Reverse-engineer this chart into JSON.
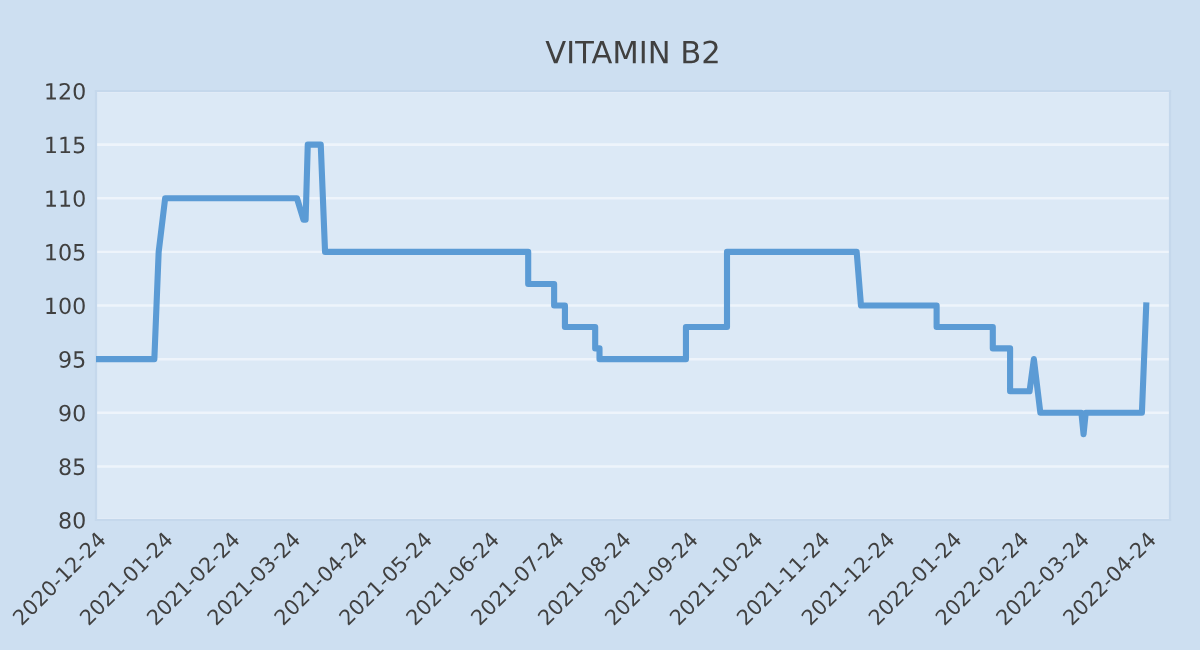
{
  "chart_data": {
    "type": "line",
    "title": "VITAMIN B2",
    "x": [
      "2020-12-24",
      "2021-01-20",
      "2021-01-22",
      "2021-01-25",
      "2021-03-27",
      "2021-03-30",
      "2021-03-31",
      "2021-04-01",
      "2021-04-07",
      "2021-04-09",
      "2021-07-12",
      "2021-07-12",
      "2021-07-24",
      "2021-07-24",
      "2021-07-29",
      "2021-07-29",
      "2021-08-12",
      "2021-08-12",
      "2021-08-14",
      "2021-08-14",
      "2021-09-23",
      "2021-09-23",
      "2021-10-12",
      "2021-10-12",
      "2021-12-11",
      "2021-12-13",
      "2022-01-17",
      "2022-01-17",
      "2022-02-12",
      "2022-02-12",
      "2022-02-20",
      "2022-02-20",
      "2022-03-01",
      "2022-03-03",
      "2022-03-06",
      "2022-03-25",
      "2022-03-26",
      "2022-03-27",
      "2022-04-22",
      "2022-04-24"
    ],
    "series": [
      {
        "color": "#5b9bd5",
        "values": [
          95,
          95,
          105,
          110,
          110,
          108,
          108,
          115,
          115,
          105,
          105,
          102,
          102,
          100,
          100,
          98,
          98,
          96,
          96,
          95,
          95,
          98,
          98,
          105,
          105,
          100,
          100,
          98,
          98,
          96,
          96,
          92,
          92,
          95,
          90,
          90,
          88,
          90,
          90,
          100
        ]
      }
    ],
    "xlim": [
      "2020-12-24",
      "2022-05-05"
    ],
    "xticks": [
      "2020-12-24",
      "2021-01-24",
      "2021-02-24",
      "2021-03-24",
      "2021-04-24",
      "2021-05-24",
      "2021-06-24",
      "2021-07-24",
      "2021-08-24",
      "2021-09-24",
      "2021-10-24",
      "2021-11-24",
      "2021-12-24",
      "2022-01-24",
      "2022-02-24",
      "2022-03-24",
      "2022-04-24"
    ],
    "ylim": [
      80,
      120
    ],
    "yticks": [
      80,
      85,
      90,
      95,
      100,
      105,
      110,
      115,
      120
    ],
    "grid": "y",
    "marker": "none",
    "line_style": "solid"
  }
}
